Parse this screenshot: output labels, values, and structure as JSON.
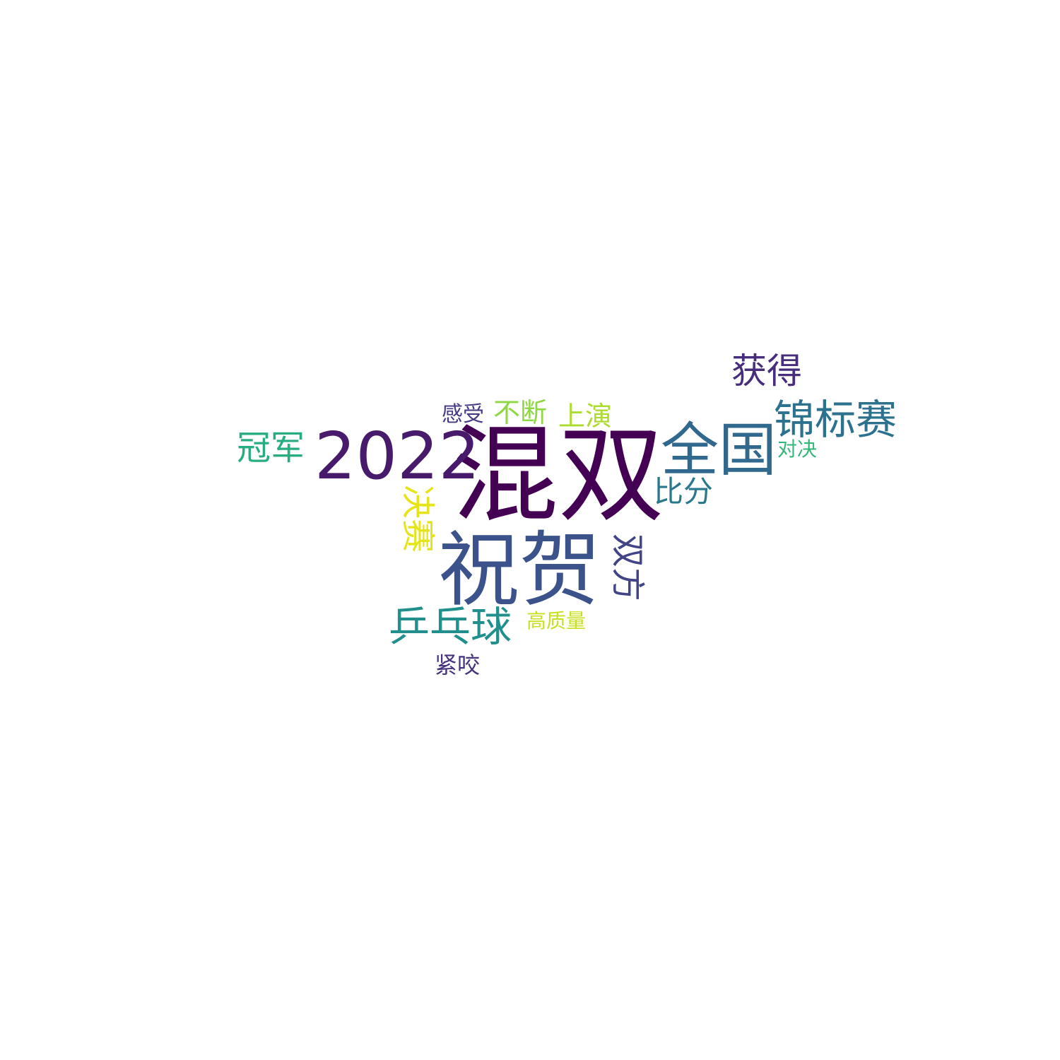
{
  "words": {
    "hunshuang": {
      "text": "混双",
      "color": "#440154"
    },
    "zhuhe": {
      "text": "祝贺",
      "color": "#3b528b"
    },
    "y2022": {
      "text": "2022",
      "color": "#481a6c"
    },
    "quanguo": {
      "text": "全国",
      "color": "#31688e"
    },
    "jinbiaosai": {
      "text": "锦标赛",
      "color": "#2c728e"
    },
    "pingpang": {
      "text": "乒乓球",
      "color": "#21908d"
    },
    "huode": {
      "text": "获得",
      "color": "#472d7b"
    },
    "guanjun": {
      "text": "冠军",
      "color": "#27ad81"
    },
    "shuangfang": {
      "text": "双方",
      "color": "#414487"
    },
    "juesai": {
      "text": "决赛",
      "color": "#e5e419"
    },
    "bifen": {
      "text": "比分",
      "color": "#2a788e"
    },
    "buduan": {
      "text": "不断",
      "color": "#8fd744"
    },
    "shangyan": {
      "text": "上演",
      "color": "#addc30"
    },
    "ganshou": {
      "text": "感受",
      "color": "#443983"
    },
    "duijue": {
      "text": "对决",
      "color": "#35b779"
    },
    "gaozhiliang": {
      "text": "高质量",
      "color": "#c8e020"
    },
    "jinyao": {
      "text": "紧咬",
      "color": "#46327e"
    }
  }
}
